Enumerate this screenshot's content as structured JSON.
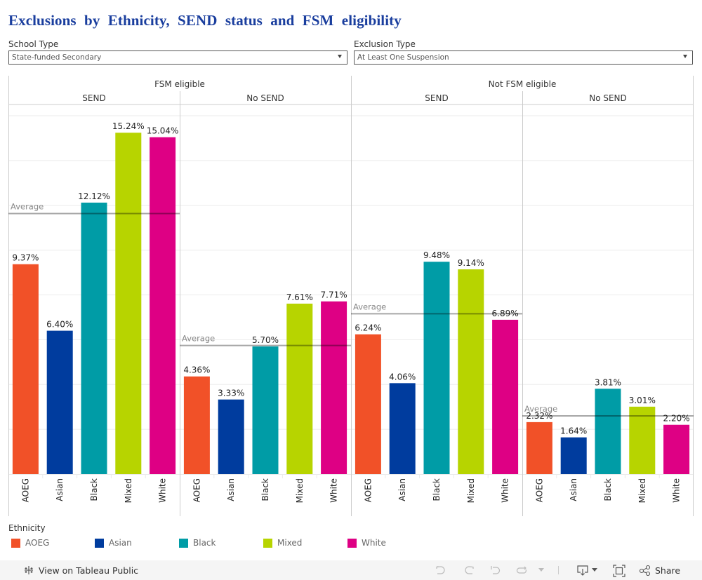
{
  "page": {
    "title": "Exclusions by Ethnicity, SEND status and FSM eligibility"
  },
  "filters": {
    "school_type": {
      "label": "School Type",
      "value": "State-funded Secondary"
    },
    "exclusion_type": {
      "label": "Exclusion Type",
      "value": "At Least One Suspension"
    }
  },
  "colors": {
    "AOEG": "#f15128",
    "Asian": "#003c9e",
    "Black": "#009ca6",
    "Mixed": "#b7d400",
    "White": "#de0084",
    "average_line": "#999999",
    "gridline": "#ebebeb",
    "divider": "#cccccc"
  },
  "legend": {
    "title": "Ethnicity",
    "items": [
      "AOEG",
      "Asian",
      "Black",
      "Mixed",
      "White"
    ]
  },
  "footer": {
    "view_link": "View on Tableau Public",
    "share_label": "Share"
  },
  "chart_data": {
    "type": "bar",
    "title": "Exclusions by Ethnicity, SEND status and FSM eligibility",
    "xlabel": "Ethnicity",
    "ylabel": "",
    "ylim": [
      0,
      16.5
    ],
    "gridline_step": 2,
    "grid": true,
    "legend_position": "bottom-left",
    "categories": [
      "AOEG",
      "Asian",
      "Black",
      "Mixed",
      "White"
    ],
    "average_label": "Average",
    "groups": [
      {
        "label": "FSM eligible",
        "panels": [
          {
            "label": "SEND",
            "values": [
              9.37,
              6.4,
              12.12,
              15.24,
              15.04
            ],
            "value_labels": [
              "9.37%",
              "6.40%",
              "12.12%",
              "15.24%",
              "15.04%"
            ],
            "average": 11.63
          },
          {
            "label": "No SEND",
            "values": [
              4.36,
              3.33,
              5.7,
              7.61,
              7.71
            ],
            "value_labels": [
              "4.36%",
              "3.33%",
              "5.70%",
              "7.61%",
              "7.71%"
            ],
            "average": 5.74
          }
        ]
      },
      {
        "label": "Not FSM eligible",
        "panels": [
          {
            "label": "SEND",
            "values": [
              6.24,
              4.06,
              9.48,
              9.14,
              6.89
            ],
            "value_labels": [
              "6.24%",
              "4.06%",
              "9.48%",
              "9.14%",
              "6.89%"
            ],
            "average": 7.16
          },
          {
            "label": "No SEND",
            "values": [
              2.32,
              1.64,
              3.81,
              3.01,
              2.2
            ],
            "value_labels": [
              "2.32%",
              "1.64%",
              "3.81%",
              "3.01%",
              "2.20%"
            ],
            "average": 2.6
          }
        ]
      }
    ]
  }
}
